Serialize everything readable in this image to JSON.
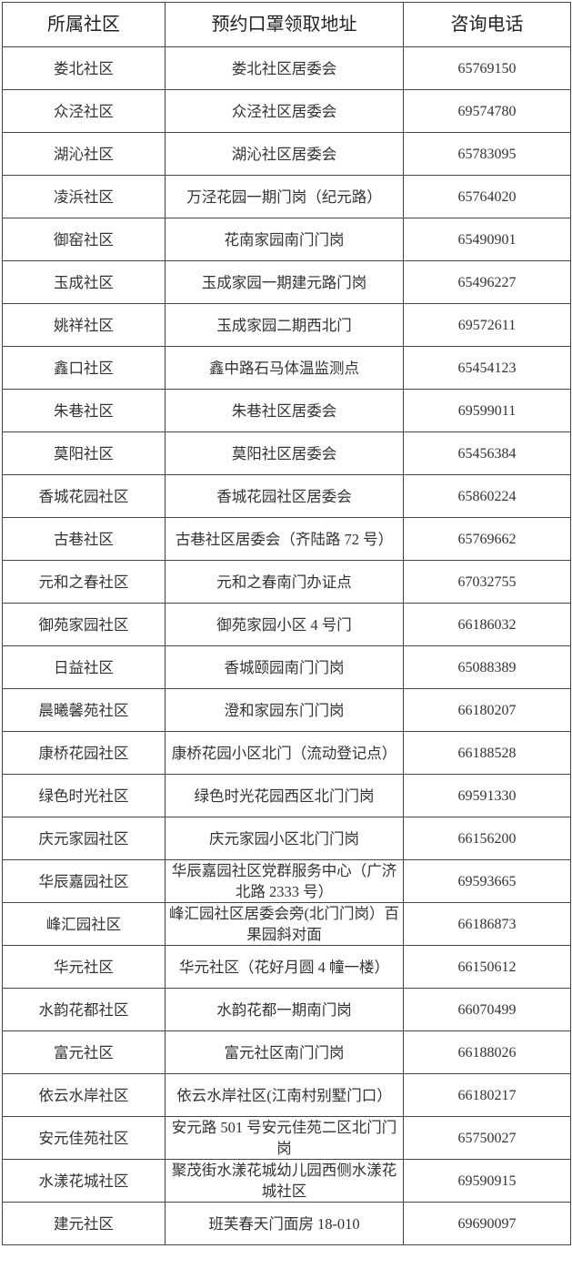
{
  "table": {
    "headers": [
      "所属社区",
      "预约口罩领取地址",
      "咨询电话"
    ],
    "rows": [
      [
        "娄北社区",
        "娄北社区居委会",
        "65769150"
      ],
      [
        "众泾社区",
        "众泾社区居委会",
        "69574780"
      ],
      [
        "湖沁社区",
        "湖沁社区居委会",
        "65783095"
      ],
      [
        "凌浜社区",
        "万泾花园一期门岗（纪元路）",
        "65764020"
      ],
      [
        "御窑社区",
        "花南家园南门门岗",
        "65490901"
      ],
      [
        "玉成社区",
        "玉成家园一期建元路门岗",
        "65496227"
      ],
      [
        "姚祥社区",
        "玉成家园二期西北门",
        "69572611"
      ],
      [
        "鑫口社区",
        "鑫中路石马体温监测点",
        "65454123"
      ],
      [
        "朱巷社区",
        "朱巷社区居委会",
        "69599011"
      ],
      [
        "莫阳社区",
        "莫阳社区居委会",
        "65456384"
      ],
      [
        "香城花园社区",
        "香城花园社区居委会",
        "65860224"
      ],
      [
        "古巷社区",
        "古巷社区居委会（齐陆路 72 号）",
        "65769662"
      ],
      [
        "元和之春社区",
        "元和之春南门办证点",
        "67032755"
      ],
      [
        "御苑家园社区",
        "御苑家园小区 4 号门",
        "66186032"
      ],
      [
        "日益社区",
        "香城颐园南门门岗",
        "65088389"
      ],
      [
        "晨曦馨苑社区",
        "澄和家园东门门岗",
        "66180207"
      ],
      [
        "康桥花园社区",
        "康桥花园小区北门（流动登记点）",
        "66188528"
      ],
      [
        "绿色时光社区",
        "绿色时光花园西区北门门岗",
        "69591330"
      ],
      [
        "庆元家园社区",
        "庆元家园小区北门门岗",
        "66156200"
      ],
      [
        "华辰嘉园社区",
        "华辰嘉园社区党群服务中心（广济北路 2333 号）",
        "69593665"
      ],
      [
        "峰汇园社区",
        "峰汇园社区居委会旁(北门门岗）百果园斜对面",
        "66186873"
      ],
      [
        "华元社区",
        "华元社区（花好月圆 4 幢一楼）",
        "66150612"
      ],
      [
        "水韵花都社区",
        "水韵花都一期南门岗",
        "66070499"
      ],
      [
        "富元社区",
        "富元社区南门门岗",
        "66188026"
      ],
      [
        "依云水岸社区",
        "依云水岸社区(江南村别墅门口）",
        "66180217"
      ],
      [
        "安元佳苑社区",
        "安元路 501 号安元佳苑二区北门门岗",
        "65750027"
      ],
      [
        "水漾花城社区",
        "聚茂街水漾花城幼儿园西侧水漾花城社区",
        "69590915"
      ],
      [
        "建元社区",
        "班芙春天门面房 18-010",
        "69690097"
      ]
    ]
  }
}
